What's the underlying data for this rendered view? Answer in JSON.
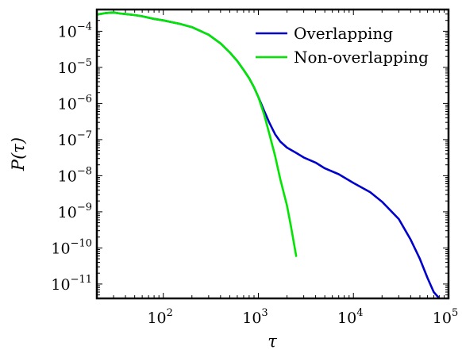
{
  "chart_data": {
    "type": "line",
    "title": "",
    "xlabel": "τ",
    "ylabel": "P(τ)",
    "xscale": "log",
    "yscale": "log",
    "xlim": [
      20,
      100000
    ],
    "ylim": [
      4e-12,
      0.0004
    ],
    "x_ticks": [
      {
        "base": "10",
        "exp": "2",
        "value": 100
      },
      {
        "base": "10",
        "exp": "3",
        "value": 1000
      },
      {
        "base": "10",
        "exp": "4",
        "value": 10000
      },
      {
        "base": "10",
        "exp": "5",
        "value": 100000
      }
    ],
    "y_ticks": [
      {
        "base": "10",
        "exp": "−4",
        "value": 0.0001
      },
      {
        "base": "10",
        "exp": "−5",
        "value": 1e-05
      },
      {
        "base": "10",
        "exp": "−6",
        "value": 1e-06
      },
      {
        "base": "10",
        "exp": "−7",
        "value": 1e-07
      },
      {
        "base": "10",
        "exp": "−8",
        "value": 1e-08
      },
      {
        "base": "10",
        "exp": "−9",
        "value": 1e-09
      },
      {
        "base": "10",
        "exp": "−10",
        "value": 1e-10
      },
      {
        "base": "10",
        "exp": "−11",
        "value": 1e-11
      }
    ],
    "grid": false,
    "legend_position": "top-right",
    "series": [
      {
        "name": "Overlapping",
        "color": "#0000cc",
        "x": [
          20,
          25,
          30,
          35,
          40,
          50,
          60,
          80,
          100,
          150,
          200,
          300,
          400,
          500,
          600,
          700,
          800,
          900,
          1000,
          1150,
          1300,
          1500,
          1700,
          2000,
          2500,
          3000,
          4000,
          5000,
          7000,
          10000,
          15000,
          20000,
          30000,
          40000,
          50000,
          60000,
          70000,
          80000,
          90000
        ],
        "y": [
          0.00029,
          0.00032,
          0.00033,
          0.00031,
          0.0003,
          0.00028,
          0.00026,
          0.00022,
          0.0002,
          0.00016,
          0.00013,
          8e-05,
          4.6e-05,
          2.6e-05,
          1.5e-05,
          8.5e-06,
          5e-06,
          2.8e-06,
          1.5e-06,
          6.3e-07,
          3e-07,
          1.4e-07,
          8.8e-08,
          6e-08,
          4.3e-08,
          3.2e-08,
          2.3e-08,
          1.6e-08,
          1.1e-08,
          6.3e-09,
          3.5e-09,
          1.9e-09,
          6.3e-10,
          1.7e-10,
          5e-11,
          1.5e-11,
          6e-12,
          4e-12,
          3.5e-12
        ]
      },
      {
        "name": "Non-overlapping",
        "color": "#00e600",
        "x": [
          20,
          25,
          30,
          35,
          40,
          50,
          60,
          80,
          100,
          150,
          200,
          300,
          400,
          500,
          600,
          700,
          800,
          900,
          1000,
          1150,
          1300,
          1500,
          1700,
          2000,
          2200,
          2500
        ],
        "y": [
          0.00029,
          0.00032,
          0.00033,
          0.00031,
          0.0003,
          0.00028,
          0.00026,
          0.00022,
          0.0002,
          0.00016,
          0.00013,
          8e-05,
          4.6e-05,
          2.6e-05,
          1.5e-05,
          8.5e-06,
          5e-06,
          2.8e-06,
          1.5e-06,
          5e-07,
          1.5e-07,
          3.5e-08,
          8e-09,
          1.5e-09,
          4e-10,
          6e-11
        ]
      }
    ]
  }
}
